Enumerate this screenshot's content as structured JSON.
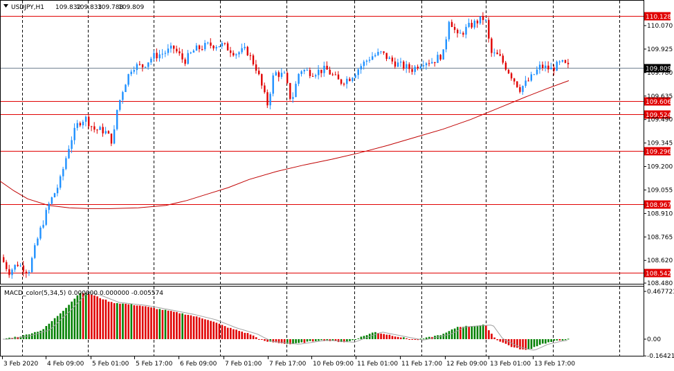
{
  "main_chart": {
    "symbol_label": "USDJPY,H1",
    "ohlc": [
      "109.832",
      "109.833",
      "109.788",
      "109.809"
    ],
    "current_price": "109.809",
    "current_price_value": 109.809,
    "price_axis_ticks": [
      "110.070",
      "109.925",
      "109.780",
      "109.635",
      "109.490",
      "109.345",
      "109.200",
      "109.055",
      "108.910",
      "108.765",
      "108.620",
      "108.480"
    ],
    "price_axis_values": [
      110.07,
      109.925,
      109.78,
      109.635,
      109.49,
      109.345,
      109.2,
      109.055,
      108.91,
      108.765,
      108.62,
      108.48
    ],
    "horizontal_levels": [
      {
        "label": "110.128",
        "value": 110.128
      },
      {
        "label": "109.606",
        "value": 109.606
      },
      {
        "label": "109.524",
        "value": 109.524
      },
      {
        "label": "109.296",
        "value": 109.296
      },
      {
        "label": "108.967",
        "value": 108.967
      },
      {
        "label": "108.542",
        "value": 108.542
      }
    ],
    "colors": {
      "bull": "#1E90FF",
      "bear": "#E00000",
      "ma": "#C00000",
      "level": "#E00000",
      "grid": "#000000",
      "current": "#000000"
    }
  },
  "macd": {
    "indicator_label": "MACD_color(5,34,5) 0.000000 0.000000 -0.005574",
    "axis_ticks": [
      "0.467723",
      "0.00",
      "-0.164216"
    ],
    "axis_values": [
      0.467723,
      0.0,
      -0.164216
    ],
    "colors": {
      "up": "#008000",
      "down": "#E00000",
      "signal": "#A0A0A0"
    }
  },
  "time_axis": {
    "labels": [
      "3 Feb 2020",
      "4 Feb 09:00",
      "5 Feb 01:00",
      "5 Feb 17:00",
      "6 Feb 09:00",
      "7 Feb 01:00",
      "7 Feb 17:00",
      "10 Feb 09:00",
      "11 Feb 01:00",
      "11 Feb 17:00",
      "12 Feb 09:00",
      "13 Feb 01:00",
      "13 Feb 17:00"
    ]
  },
  "chart_data": {
    "type": "candlestick",
    "title": "USDJPY,H1",
    "ylim": [
      108.45,
      110.17
    ],
    "moving_average": [
      [
        0,
        109.11
      ],
      [
        20,
        109.05
      ],
      [
        40,
        109.0
      ],
      [
        70,
        108.96
      ],
      [
        100,
        108.945
      ],
      [
        130,
        108.94
      ],
      [
        160,
        108.94
      ],
      [
        200,
        108.945
      ],
      [
        240,
        108.96
      ],
      [
        270,
        108.99
      ],
      [
        300,
        109.03
      ],
      [
        330,
        109.07
      ],
      [
        360,
        109.12
      ],
      [
        400,
        109.17
      ],
      [
        440,
        109.21
      ],
      [
        480,
        109.245
      ],
      [
        520,
        109.285
      ],
      [
        560,
        109.33
      ],
      [
        600,
        109.38
      ],
      [
        640,
        109.43
      ],
      [
        680,
        109.49
      ],
      [
        720,
        109.56
      ],
      [
        760,
        109.63
      ],
      [
        790,
        109.68
      ],
      [
        822,
        109.73
      ]
    ],
    "macd_hist_key": [
      [
        0,
        0.0
      ],
      [
        30,
        0.03
      ],
      [
        60,
        0.09
      ],
      [
        90,
        0.28
      ],
      [
        115,
        0.46
      ],
      [
        130,
        0.44
      ],
      [
        160,
        0.36
      ],
      [
        200,
        0.33
      ],
      [
        240,
        0.28
      ],
      [
        270,
        0.24
      ],
      [
        300,
        0.19
      ],
      [
        330,
        0.11
      ],
      [
        360,
        0.05
      ],
      [
        380,
        -0.02
      ],
      [
        420,
        -0.05
      ],
      [
        460,
        -0.01
      ],
      [
        500,
        -0.03
      ],
      [
        540,
        0.07
      ],
      [
        570,
        0.03
      ],
      [
        600,
        -0.01
      ],
      [
        640,
        0.05
      ],
      [
        660,
        0.12
      ],
      [
        700,
        0.14
      ],
      [
        715,
        0.0
      ],
      [
        740,
        -0.08
      ],
      [
        760,
        -0.11
      ],
      [
        780,
        -0.05
      ],
      [
        800,
        -0.02
      ],
      [
        820,
        0.0
      ]
    ]
  }
}
